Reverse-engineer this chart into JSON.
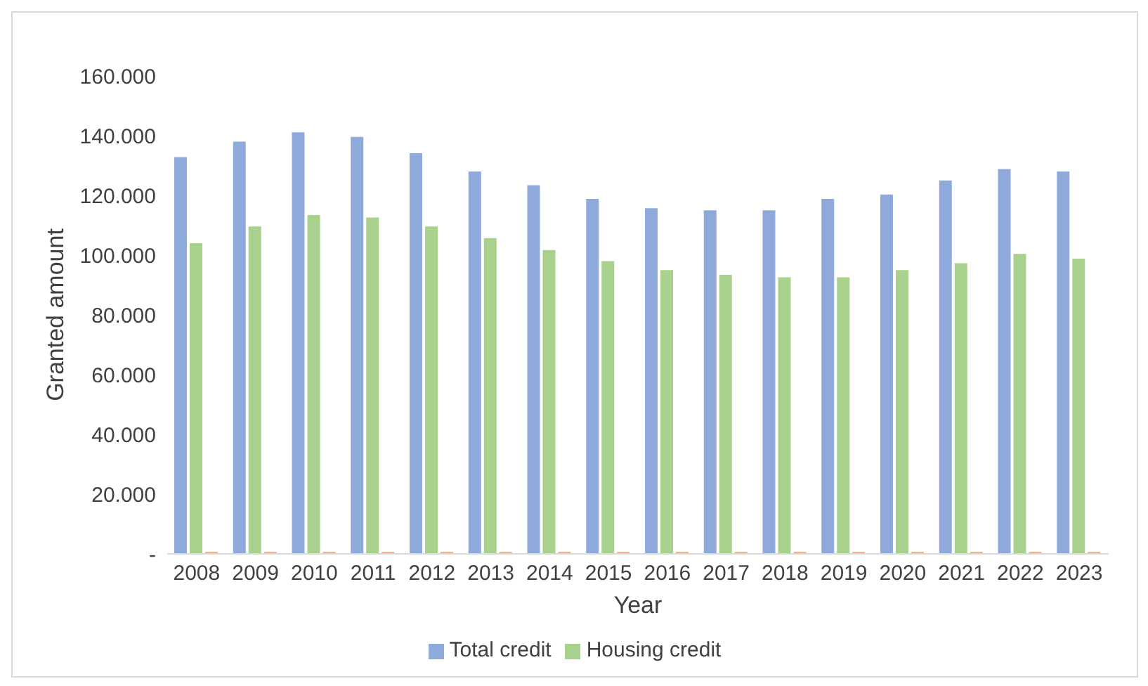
{
  "chart_data": {
    "type": "bar",
    "xlabel": "Year",
    "ylabel": "Granted amount",
    "categories": [
      "2008",
      "2009",
      "2010",
      "2011",
      "2012",
      "2013",
      "2014",
      "2015",
      "2016",
      "2017",
      "2018",
      "2019",
      "2020",
      "2021",
      "2022",
      "2023"
    ],
    "series": [
      {
        "name": "Total credit",
        "color": "#8eaadb",
        "values": [
          132800,
          138000,
          141100,
          139600,
          134100,
          128000,
          123400,
          118800,
          115700,
          115000,
          115000,
          118800,
          120300,
          125000,
          128800,
          128000
        ]
      },
      {
        "name": "Housing credit",
        "color": "#a9d18e",
        "values": [
          104000,
          109600,
          113400,
          112600,
          109600,
          105700,
          101700,
          98000,
          95000,
          93400,
          92600,
          92600,
          95000,
          97300,
          100400,
          98800
        ]
      },
      {
        "color": "#f4b183",
        "values": [
          700,
          700,
          700,
          700,
          700,
          700,
          700,
          700,
          700,
          700,
          700,
          700,
          700,
          700,
          700,
          700
        ]
      }
    ],
    "ylim": [
      0,
      160000
    ],
    "yticks": [
      {
        "value": 0,
        "label": "-"
      },
      {
        "value": 20000,
        "label": "20.000"
      },
      {
        "value": 40000,
        "label": "40.000"
      },
      {
        "value": 60000,
        "label": "60.000"
      },
      {
        "value": 80000,
        "label": "80.000"
      },
      {
        "value": 100000,
        "label": "100.000"
      },
      {
        "value": 120000,
        "label": "120.000"
      },
      {
        "value": 140000,
        "label": "140.000"
      },
      {
        "value": 160000,
        "label": "160.000"
      }
    ],
    "grid": false,
    "legend": "bottom"
  }
}
